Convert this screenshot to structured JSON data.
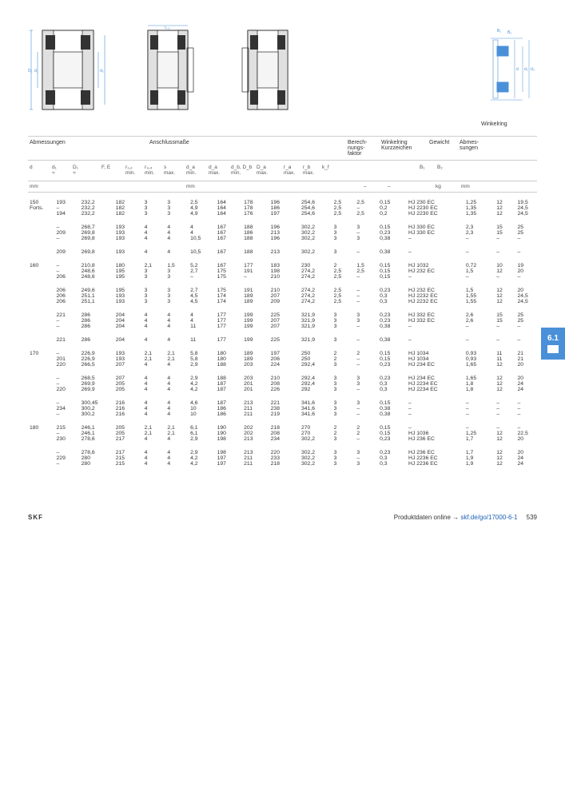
{
  "section_tab": "6.1",
  "diagram_caption": "Winkelring",
  "header_groups": {
    "g1": "Abmessungen",
    "g2": "Anschlussmaße",
    "g3": "Berech-\nnungs-\nfaktor",
    "g4": "Winkelring\nKurzzeichen",
    "g5": "Gewicht",
    "g6": "Abmes-\nsungen"
  },
  "cols": {
    "c0": "d",
    "c1": "d₁\n≈",
    "c2": "D₁\n≈",
    "c3": "F, E",
    "c4": "r₁,₂\nmin.",
    "c5": "r₃,₄\nmin.",
    "c6": "s\nmax.",
    "c7": "d_a\nmin.",
    "c8": "d_a\nmax.",
    "c9": "d_b, D_b\nmin.",
    "c10": "D_a\nmax.",
    "c11": "r_a\nmax.",
    "c12": "r_b\nmax.",
    "c13": "k_f",
    "c14": "",
    "c15": "",
    "c16": "B₁",
    "c17": "B₂"
  },
  "units": {
    "u0": "mm",
    "u1": "mm",
    "u2": "–",
    "u3": "–",
    "u4": "kg",
    "u5": "mm"
  },
  "rows": [
    [
      "150\nForts.",
      "193\n–\n194",
      "232,2\n232,2\n232,2",
      "182\n182\n182",
      "3\n3\n3",
      "3\n3\n3",
      "2,5\n4,9\n4,9",
      "164\n164\n164",
      "178\n178\n176",
      "196\n186\n197",
      "254,6\n254,6\n254,6",
      "2,5\n2,5\n2,5",
      "2,5\n–\n2,5",
      "0,15\n0,2\n0,2",
      "HJ 230 EC\nHJ 2230 EC\nHJ 2230 EC",
      "1,25\n1,35\n1,35",
      "12\n12\n12",
      "19,5\n24,5\n24,5"
    ],
    [
      "",
      "–\n209\n–",
      "268,7\n269,8\n269,8",
      "193\n193\n193",
      "4\n4\n4",
      "4\n4\n4",
      "4\n4\n10,5",
      "167\n167\n167",
      "188\n186\n188",
      "196\n213\n196",
      "302,2\n302,2\n302,2",
      "3\n3\n3",
      "3\n–\n3",
      "0,15\n0,23\n0,38",
      "HJ 330 EC\nHJ 330 EC\n–",
      "2,3\n2,3\n–",
      "15\n15\n–",
      "25\n25\n–"
    ],
    [
      "",
      "209",
      "269,8",
      "193",
      "4",
      "4",
      "10,5",
      "167",
      "188",
      "213",
      "302,2",
      "3",
      "–",
      "0,38",
      "–",
      "–",
      "–",
      "–"
    ],
    [
      "160",
      "–\n–\n206",
      "210,8\n248,6\n248,6",
      "180\n195\n195",
      "2,1\n3\n3",
      "1,5\n3\n3",
      "5,2\n2,7\n–",
      "167\n175\n175",
      "177\n191\n–",
      "183\n198\n210",
      "230\n274,2\n274,2",
      "2\n2,5\n2,5",
      "1,5\n2,5\n–",
      "0,15\n0,15\n0,15",
      "HJ 1032\nHJ 232 EC\n–",
      "0,72\n1,5\n–",
      "10\n12\n–",
      "19\n20\n–"
    ],
    [
      "",
      "206\n206\n206",
      "249,6\n251,1\n251,1",
      "195\n193\n193",
      "3\n3\n3",
      "3\n3\n3",
      "2,7\n4,5\n4,5",
      "175\n174\n174",
      "191\n189\n189",
      "210\n207\n209",
      "274,2\n274,2\n274,2",
      "2,5\n2,5\n2,5",
      "–\n–\n–",
      "0,23\n0,3\n0,3",
      "HJ 232 EC\nHJ 2232 EC\nHJ 2232 EC",
      "1,5\n1,55\n1,55",
      "12\n12\n12",
      "20\n24,5\n24,5"
    ],
    [
      "",
      "221\n–\n–",
      "286\n286\n286",
      "204\n204\n204",
      "4\n4\n4",
      "4\n4\n4",
      "4\n4\n11",
      "177\n177\n177",
      "199\n199\n199",
      "225\n207\n207",
      "321,9\n321,9\n321,9",
      "3\n3\n3",
      "3\n3\n–",
      "0,23\n0,23\n0,38",
      "HJ 332 EC\nHJ 332 EC\n–",
      "2,6\n2,6\n–",
      "15\n15\n–",
      "25\n25\n–"
    ],
    [
      "",
      "221",
      "286",
      "204",
      "4",
      "4",
      "11",
      "177",
      "199",
      "225",
      "321,9",
      "3",
      "–",
      "0,38",
      "–",
      "–",
      "–",
      "–"
    ],
    [
      "170",
      "–\n201\n220",
      "226,9\n226,9\n266,5",
      "193\n193\n207",
      "2,1\n2,1\n4",
      "2,1\n2,1\n4",
      "5,8\n5,8\n2,9",
      "180\n180\n188",
      "189\n189\n203",
      "197\n206\n224",
      "250\n250\n292,4",
      "2\n2\n3",
      "2\n–\n–",
      "0,15\n0,15\n0,23",
      "HJ 1034\nHJ 1034\nHJ 234 EC",
      "0,93\n0,93\n1,65",
      "11\n11\n12",
      "21\n21\n20"
    ],
    [
      "",
      "–\n–\n220",
      "268,5\n269,9\n269,9",
      "207\n205\n205",
      "4\n4\n4",
      "4\n4\n4",
      "2,9\n4,2\n4,2",
      "188\n187\n187",
      "203\n201\n201",
      "210\n208\n226",
      "292,4\n292,4\n292",
      "3\n3\n3",
      "3\n3\n–",
      "0,23\n0,3\n0,3",
      "HJ 234 EC\nHJ 2234 EC\nHJ 2234 EC",
      "1,65\n1,8\n1,8",
      "12\n12\n12",
      "20\n24\n24"
    ],
    [
      "",
      "–\n234\n–",
      "300,45\n300,2\n300,2",
      "216\n216\n216",
      "4\n4\n4",
      "4\n4\n4",
      "4,6\n10\n10",
      "187\n186\n186",
      "213\n211\n211",
      "221\n238\n219",
      "341,6\n341,6\n341,6",
      "3\n3\n3",
      "3\n–\n–",
      "0,15\n0,38\n0,38",
      "–\n–\n–",
      "–\n–\n–",
      "–\n–\n–",
      "–\n–\n–"
    ],
    [
      "180",
      "215\n–\n230",
      "246,1\n246,1\n278,6",
      "205\n205\n217",
      "2,1\n2,1\n4",
      "2,1\n2,1\n4",
      "6,1\n6,1\n2,9",
      "190\n190\n198",
      "202\n202\n213",
      "218\n208\n234",
      "270\n270\n302,2",
      "2\n2\n3",
      "2\n2\n–",
      "0,15\n0,15\n0,23",
      "–\nHJ 1036\nHJ 236 EC",
      "–\n1,25\n1,7",
      "–\n12\n12",
      "–\n22,5\n20"
    ],
    [
      "",
      "–\n229\n–",
      "278,6\n280\n280",
      "217\n215\n215",
      "4\n4\n4",
      "4\n4\n4",
      "2,9\n4,2\n4,2",
      "198\n197\n197",
      "213\n211\n211",
      "220\n233\n218",
      "302,2\n302,2\n302,2",
      "3\n3\n3",
      "3\n–\n3",
      "0,23\n0,3\n0,3",
      "HJ 236 EC\nHJ 2236 EC\nHJ 2236 EC",
      "1,7\n1,9\n1,9",
      "12\n12\n12",
      "20\n24\n24"
    ]
  ],
  "footer": {
    "brand": "SKF",
    "link_text": "Produktdaten online → ",
    "link_url": "skf.de/go/17000-6-1",
    "page": "539"
  }
}
